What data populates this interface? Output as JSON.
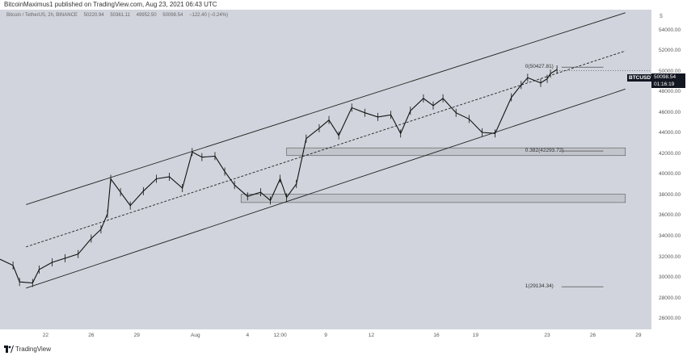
{
  "header": {
    "publisher_text": "BitcoinMaximus1 published on TradingView.com, Aug 23, 2021 06:43 UTC"
  },
  "legend": {
    "symbol": "Bitcoin / TetherUS, 2h, BINANCE",
    "open": "50220.94",
    "high": "50361.11",
    "low": "49952.50",
    "close": "50098.54",
    "change": "−122.40 (−0.24%)"
  },
  "price_axis": {
    "currency": "$",
    "badge_symbol": "BTCUSDT",
    "last_price": "50098.54",
    "countdown": "01:16:19"
  },
  "footer": {
    "brand": "TradingView"
  },
  "chart_data": {
    "type": "line",
    "symbol": "BTCUSDT",
    "timeframe": "2h",
    "ylim": [
      25000,
      56000
    ],
    "y_ticks": [
      54000,
      52000,
      50000,
      48000,
      46000,
      44000,
      42000,
      40000,
      38000,
      36000,
      34000,
      32000,
      30000,
      28000,
      26000
    ],
    "x_ticks": [
      "22",
      "26",
      "29",
      "Aug",
      "4",
      "12:00",
      "9",
      "12",
      "16",
      "19",
      "23",
      "26",
      "29"
    ],
    "x_tick_positions": [
      0.07,
      0.14,
      0.21,
      0.3,
      0.38,
      0.43,
      0.5,
      0.57,
      0.67,
      0.73,
      0.84,
      0.91,
      0.98
    ],
    "price_path": [
      [
        0,
        31800
      ],
      [
        0.02,
        31200
      ],
      [
        0.03,
        29600
      ],
      [
        0.05,
        29500
      ],
      [
        0.06,
        30800
      ],
      [
        0.08,
        31500
      ],
      [
        0.1,
        31900
      ],
      [
        0.12,
        32300
      ],
      [
        0.14,
        33800
      ],
      [
        0.155,
        34700
      ],
      [
        0.165,
        36200
      ],
      [
        0.17,
        39600
      ],
      [
        0.185,
        38300
      ],
      [
        0.2,
        37000
      ],
      [
        0.22,
        38400
      ],
      [
        0.24,
        39600
      ],
      [
        0.26,
        39800
      ],
      [
        0.28,
        38700
      ],
      [
        0.295,
        42200
      ],
      [
        0.31,
        41700
      ],
      [
        0.33,
        41800
      ],
      [
        0.345,
        40300
      ],
      [
        0.36,
        39000
      ],
      [
        0.38,
        37900
      ],
      [
        0.4,
        38300
      ],
      [
        0.415,
        37500
      ],
      [
        0.43,
        39600
      ],
      [
        0.44,
        37800
      ],
      [
        0.455,
        39100
      ],
      [
        0.47,
        43500
      ],
      [
        0.49,
        44500
      ],
      [
        0.505,
        45300
      ],
      [
        0.52,
        43800
      ],
      [
        0.54,
        46500
      ],
      [
        0.56,
        46000
      ],
      [
        0.58,
        45600
      ],
      [
        0.6,
        45800
      ],
      [
        0.615,
        44000
      ],
      [
        0.63,
        46200
      ],
      [
        0.65,
        47400
      ],
      [
        0.665,
        46700
      ],
      [
        0.68,
        47400
      ],
      [
        0.7,
        46000
      ],
      [
        0.72,
        45400
      ],
      [
        0.74,
        44100
      ],
      [
        0.76,
        44000
      ],
      [
        0.785,
        47500
      ],
      [
        0.8,
        48700
      ],
      [
        0.81,
        49400
      ],
      [
        0.83,
        48900
      ],
      [
        0.84,
        49300
      ],
      [
        0.845,
        49800
      ],
      [
        0.855,
        50200
      ]
    ],
    "channel_upper": [
      [
        0.04,
        37100
      ],
      [
        0.96,
        55700
      ]
    ],
    "channel_mid": [
      [
        0.04,
        33000
      ],
      [
        0.96,
        52000
      ]
    ],
    "channel_lower": [
      [
        0.04,
        29000
      ],
      [
        0.96,
        48300
      ]
    ],
    "support_zones": [
      {
        "x": [
          0.44,
          0.96
        ],
        "y": [
          41850,
          42600
        ]
      },
      {
        "x": [
          0.37,
          0.96
        ],
        "y": [
          37300,
          38100
        ]
      }
    ],
    "fib_levels": [
      {
        "label": "0(50427.81)",
        "value": 50427.81,
        "x": [
          0.8,
          0.92
        ]
      },
      {
        "label": "0.382(42293.72)",
        "value": 42293.72,
        "x": [
          0.8,
          0.92
        ]
      },
      {
        "label": "1(29134.34)",
        "value": 29134.34,
        "x": [
          0.8,
          0.92
        ]
      }
    ],
    "last_price": 50098.54,
    "grid": false
  }
}
